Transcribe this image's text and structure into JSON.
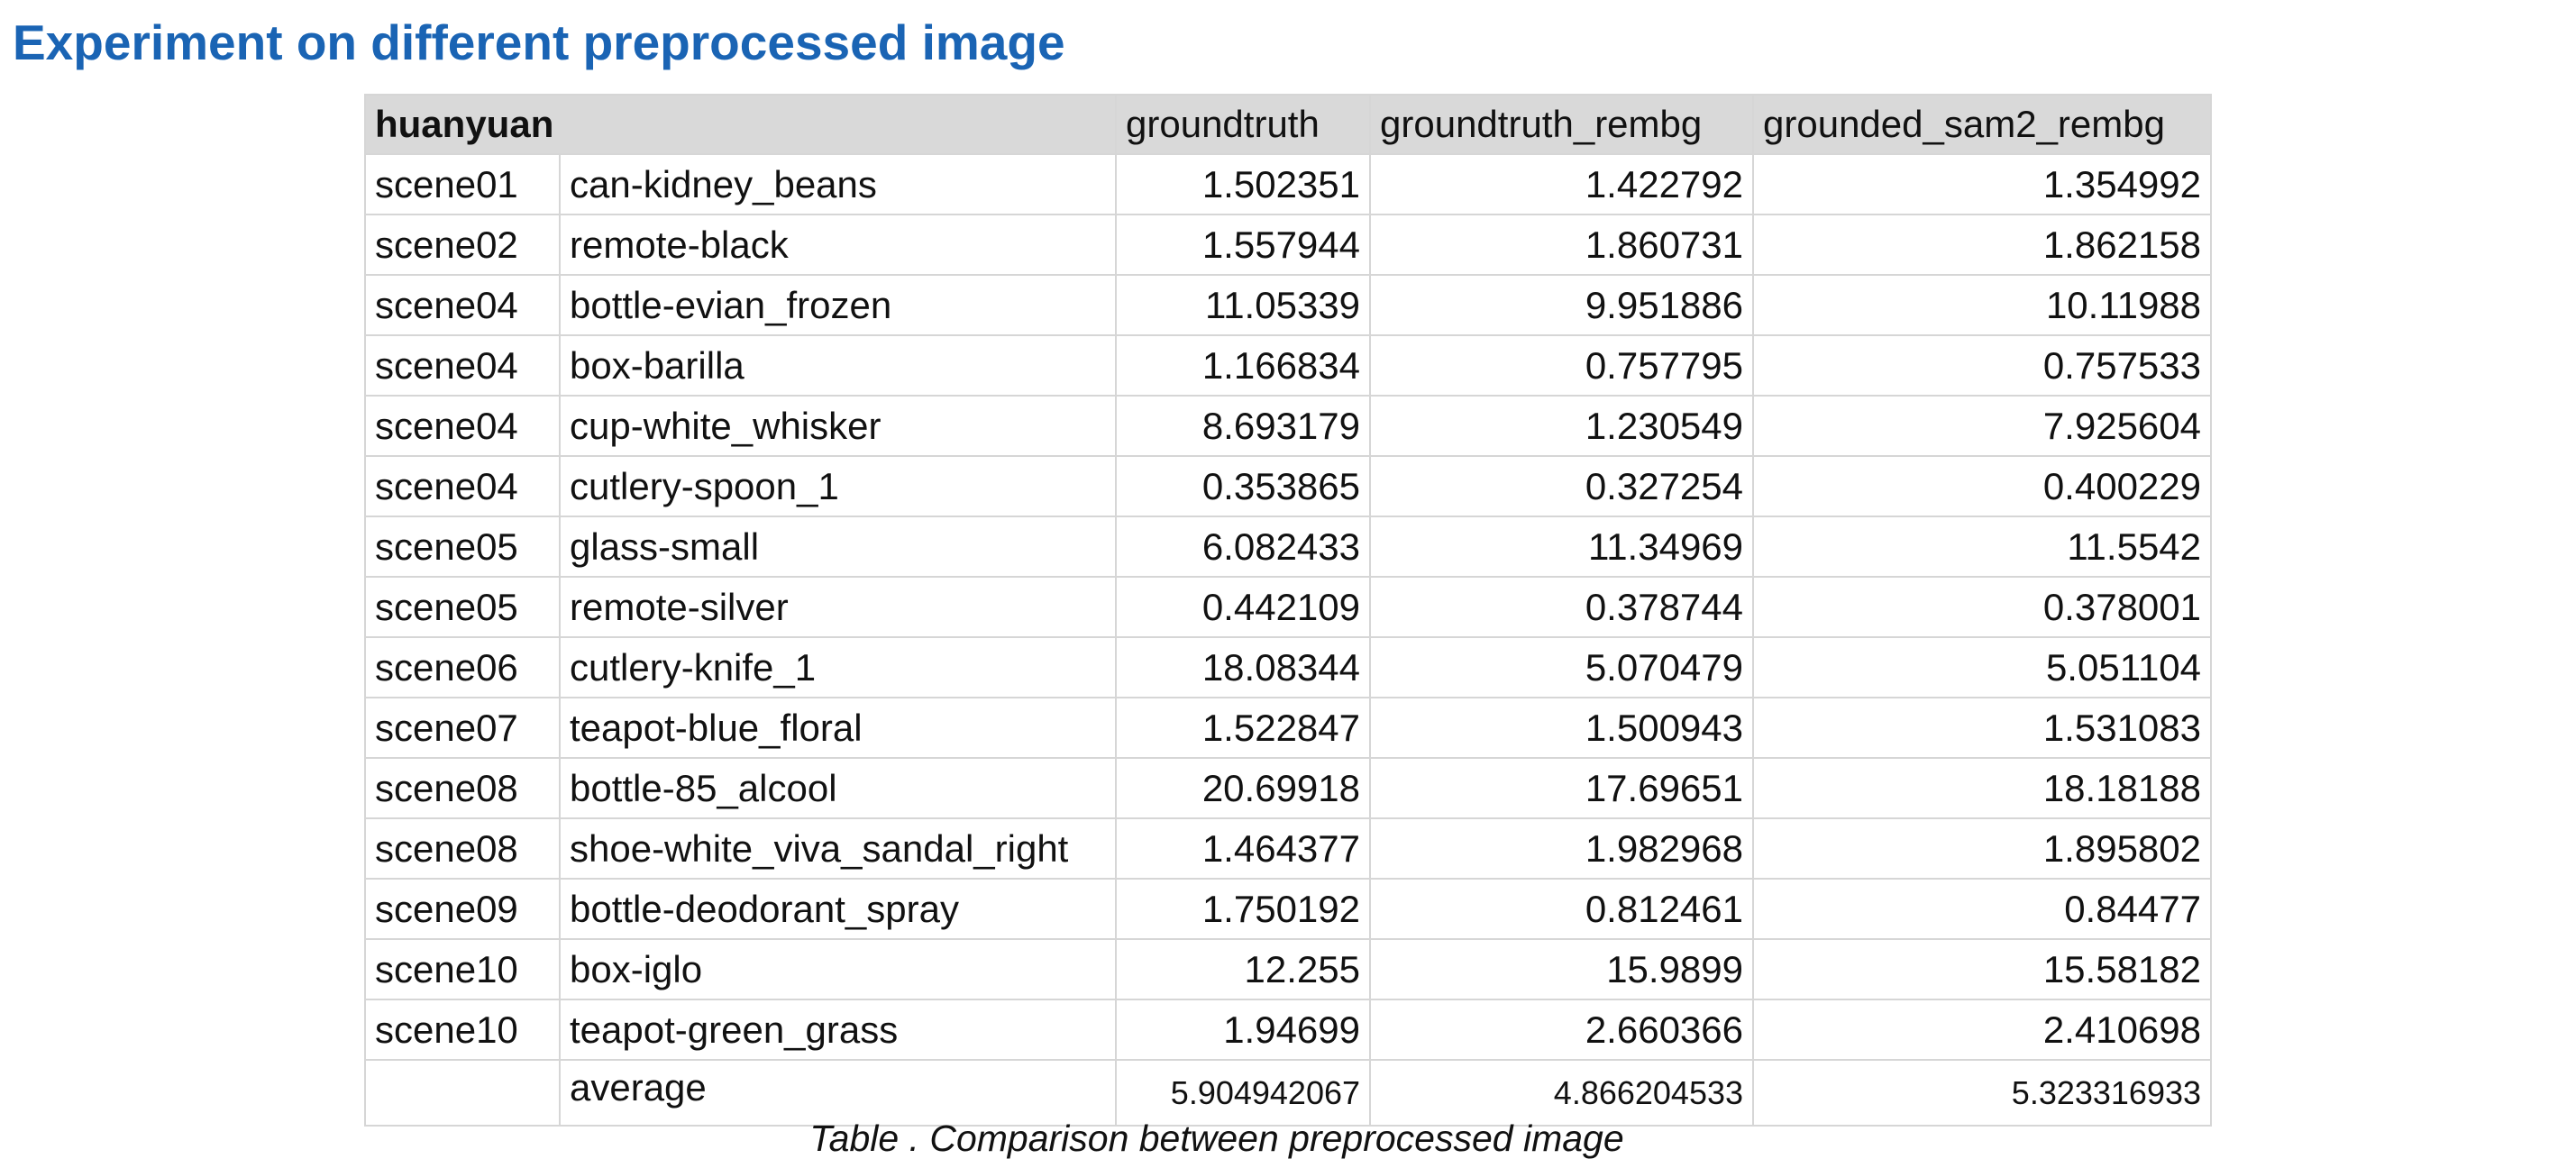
{
  "page_title": "Experiment on different preprocessed image",
  "table": {
    "headers": {
      "dataset": "huanyuan",
      "groundtruth": "groundtruth",
      "groundtruth_rembg": "groundtruth_rembg",
      "grounded_sam2_rembg": "grounded_sam2_rembg"
    },
    "rows": [
      {
        "scene": "scene01",
        "object": "can-kidney_beans",
        "groundtruth": "1.502351",
        "groundtruth_rembg": "1.422792",
        "grounded_sam2_rembg": "1.354992"
      },
      {
        "scene": "scene02",
        "object": "remote-black",
        "groundtruth": "1.557944",
        "groundtruth_rembg": "1.860731",
        "grounded_sam2_rembg": "1.862158"
      },
      {
        "scene": "scene04",
        "object": "bottle-evian_frozen",
        "groundtruth": "11.05339",
        "groundtruth_rembg": "9.951886",
        "grounded_sam2_rembg": "10.11988"
      },
      {
        "scene": "scene04",
        "object": "box-barilla",
        "groundtruth": "1.166834",
        "groundtruth_rembg": "0.757795",
        "grounded_sam2_rembg": "0.757533"
      },
      {
        "scene": "scene04",
        "object": "cup-white_whisker",
        "groundtruth": "8.693179",
        "groundtruth_rembg": "1.230549",
        "grounded_sam2_rembg": "7.925604"
      },
      {
        "scene": "scene04",
        "object": "cutlery-spoon_1",
        "groundtruth": "0.353865",
        "groundtruth_rembg": "0.327254",
        "grounded_sam2_rembg": "0.400229"
      },
      {
        "scene": "scene05",
        "object": "glass-small",
        "groundtruth": "6.082433",
        "groundtruth_rembg": "11.34969",
        "grounded_sam2_rembg": "11.5542"
      },
      {
        "scene": "scene05",
        "object": "remote-silver",
        "groundtruth": "0.442109",
        "groundtruth_rembg": "0.378744",
        "grounded_sam2_rembg": "0.378001"
      },
      {
        "scene": "scene06",
        "object": "cutlery-knife_1",
        "groundtruth": "18.08344",
        "groundtruth_rembg": "5.070479",
        "grounded_sam2_rembg": "5.051104"
      },
      {
        "scene": "scene07",
        "object": "teapot-blue_floral",
        "groundtruth": "1.522847",
        "groundtruth_rembg": "1.500943",
        "grounded_sam2_rembg": "1.531083"
      },
      {
        "scene": "scene08",
        "object": "bottle-85_alcool",
        "groundtruth": "20.69918",
        "groundtruth_rembg": "17.69651",
        "grounded_sam2_rembg": "18.18188"
      },
      {
        "scene": "scene08",
        "object": "shoe-white_viva_sandal_right",
        "groundtruth": "1.464377",
        "groundtruth_rembg": "1.982968",
        "grounded_sam2_rembg": "1.895802"
      },
      {
        "scene": "scene09",
        "object": "bottle-deodorant_spray",
        "groundtruth": "1.750192",
        "groundtruth_rembg": "0.812461",
        "grounded_sam2_rembg": "0.84477"
      },
      {
        "scene": "scene10",
        "object": "box-iglo",
        "groundtruth": "12.255",
        "groundtruth_rembg": "15.9899",
        "grounded_sam2_rembg": "15.58182"
      },
      {
        "scene": "scene10",
        "object": "teapot-green_grass",
        "groundtruth": "1.94699",
        "groundtruth_rembg": "2.660366",
        "grounded_sam2_rembg": "2.410698"
      }
    ],
    "average": {
      "label": "average",
      "groundtruth": "5.904942067",
      "groundtruth_rembg": "4.866204533",
      "grounded_sam2_rembg": "5.323316933"
    }
  },
  "caption": "Table . Comparison between preprocessed image"
}
